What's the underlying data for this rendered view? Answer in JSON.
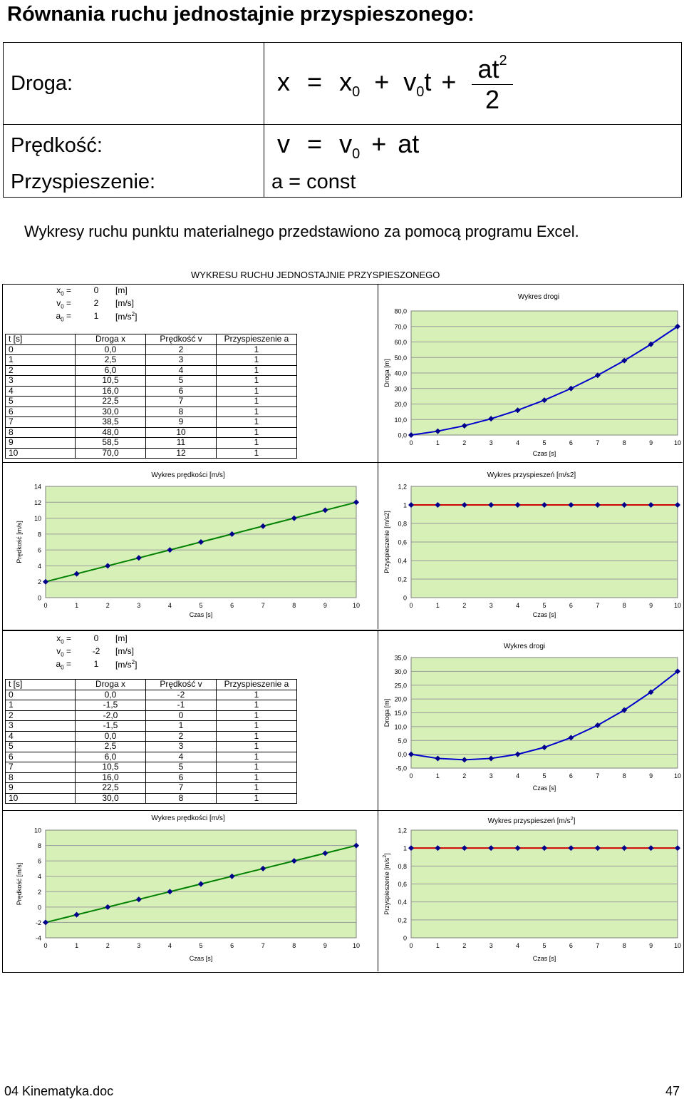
{
  "title": "Równania ruchu jednostajnie przyspieszonego:",
  "equations": {
    "droga_label": "Droga:",
    "predkosc_label": "Prędkość:",
    "przysp_label": "Przyspieszenie:",
    "przysp_formula": "a = const",
    "droga_formula": {
      "x": "x",
      "eq": "=",
      "x0": "x",
      "sub0": "0",
      "plus": "+",
      "v0": "v",
      "t": "t",
      "num": "at",
      "exp": "2",
      "den": "2"
    },
    "predkosc_formula": {
      "v": "v",
      "eq": "=",
      "v0": "v",
      "sub0": "0",
      "plus": "+",
      "at": "at"
    }
  },
  "intro": "Wykresy ruchu punktu materialnego przedstawiono za pomocą programu Excel.",
  "section_title": "WYKRESU RUCHU JEDNOSTAJNIE PRZYSPIESZONEGO",
  "tables": [
    {
      "params": [
        {
          "key": "x",
          "sub": "0",
          "eq": " =",
          "value": "0",
          "unit": "[m]"
        },
        {
          "key": "v",
          "sub": "0",
          "eq": " =",
          "value": "2",
          "unit": "[m/s]"
        },
        {
          "key": "a",
          "sub": "0",
          "eq": " =",
          "value": "1",
          "unit": "[m/s",
          "unit_sup": "2",
          "unit_end": "]"
        }
      ],
      "headers": [
        "t [s]",
        "Droga x",
        "Prędkość v",
        "Przyspieszenie a"
      ],
      "rows": [
        [
          "0",
          "0,0",
          "2",
          "1"
        ],
        [
          "1",
          "2,5",
          "3",
          "1"
        ],
        [
          "2",
          "6,0",
          "4",
          "1"
        ],
        [
          "3",
          "10,5",
          "5",
          "1"
        ],
        [
          "4",
          "16,0",
          "6",
          "1"
        ],
        [
          "5",
          "22,5",
          "7",
          "1"
        ],
        [
          "6",
          "30,0",
          "8",
          "1"
        ],
        [
          "7",
          "38,5",
          "9",
          "1"
        ],
        [
          "8",
          "48,0",
          "10",
          "1"
        ],
        [
          "9",
          "58,5",
          "11",
          "1"
        ],
        [
          "10",
          "70,0",
          "12",
          "1"
        ]
      ]
    },
    {
      "params": [
        {
          "key": "x",
          "sub": "0",
          "eq": " =",
          "value": "0",
          "unit": "[m]"
        },
        {
          "key": "v",
          "sub": "0",
          "eq": " =",
          "value": "-2",
          "unit": "[m/s]"
        },
        {
          "key": "a",
          "sub": "0",
          "eq": " =",
          "value": "1",
          "unit": "[m/s",
          "unit_sup": "2",
          "unit_end": "]"
        }
      ],
      "headers": [
        "t [s]",
        "Droga x",
        "Prędkość v",
        "Przyspieszenie a"
      ],
      "rows": [
        [
          "0",
          "0,0",
          "-2",
          "1"
        ],
        [
          "1",
          "-1,5",
          "-1",
          "1"
        ],
        [
          "2",
          "-2,0",
          "0",
          "1"
        ],
        [
          "3",
          "-1,5",
          "1",
          "1"
        ],
        [
          "4",
          "0,0",
          "2",
          "1"
        ],
        [
          "5",
          "2,5",
          "3",
          "1"
        ],
        [
          "6",
          "6,0",
          "4",
          "1"
        ],
        [
          "7",
          "10,5",
          "5",
          "1"
        ],
        [
          "8",
          "16,0",
          "6",
          "1"
        ],
        [
          "9",
          "22,5",
          "7",
          "1"
        ],
        [
          "10",
          "30,0",
          "8",
          "1"
        ]
      ]
    }
  ],
  "chart_data": [
    {
      "type": "line",
      "title": "Wykres drogi",
      "xlabel": "Czas [s]",
      "ylabel": "Droga [m]",
      "x": [
        0,
        1,
        2,
        3,
        4,
        5,
        6,
        7,
        8,
        9,
        10
      ],
      "y": [
        0,
        2.5,
        6,
        10.5,
        16,
        22.5,
        30,
        38.5,
        48,
        58.5,
        70
      ],
      "ylim": [
        0,
        80
      ],
      "yticks": [
        "0,0",
        "10,0",
        "20,0",
        "30,0",
        "40,0",
        "50,0",
        "60,0",
        "70,0",
        "80,0"
      ],
      "xticks": [
        "0",
        "1",
        "2",
        "3",
        "4",
        "5",
        "6",
        "7",
        "8",
        "9",
        "10"
      ],
      "line_color": "#0000cc",
      "marker_color": "#00008b",
      "grid": true
    },
    {
      "type": "line",
      "title": "Wykres prędkości [m/s]",
      "xlabel": "Czas [s]",
      "ylabel": "Prędkość [m/s]",
      "x": [
        0,
        1,
        2,
        3,
        4,
        5,
        6,
        7,
        8,
        9,
        10
      ],
      "y": [
        2,
        3,
        4,
        5,
        6,
        7,
        8,
        9,
        10,
        11,
        12
      ],
      "ylim": [
        0,
        14
      ],
      "yticks": [
        "0",
        "2",
        "4",
        "6",
        "8",
        "10",
        "12",
        "14"
      ],
      "xticks": [
        "0",
        "1",
        "2",
        "3",
        "4",
        "5",
        "6",
        "7",
        "8",
        "9",
        "10"
      ],
      "line_color": "#008000",
      "marker_color": "#00008b",
      "grid": true
    },
    {
      "type": "line",
      "title": "Wykres przyspieszeń [m/s2]",
      "xlabel": "Czas [s]",
      "ylabel": "Przyspieszenie [m/s2]",
      "x": [
        0,
        1,
        2,
        3,
        4,
        5,
        6,
        7,
        8,
        9,
        10
      ],
      "y": [
        1,
        1,
        1,
        1,
        1,
        1,
        1,
        1,
        1,
        1,
        1
      ],
      "ylim": [
        0,
        1.2
      ],
      "yticks": [
        "0",
        "0,2",
        "0,4",
        "0,6",
        "0,8",
        "1",
        "1,2"
      ],
      "xticks": [
        "0",
        "1",
        "2",
        "3",
        "4",
        "5",
        "6",
        "7",
        "8",
        "9",
        "10"
      ],
      "line_color": "#cc0000",
      "marker_color": "#00008b",
      "grid": true
    },
    {
      "type": "line",
      "title": "Wykres drogi",
      "xlabel": "Czas [s]",
      "ylabel": "Droga [m]",
      "x": [
        0,
        1,
        2,
        3,
        4,
        5,
        6,
        7,
        8,
        9,
        10
      ],
      "y": [
        0,
        -1.5,
        -2,
        -1.5,
        0,
        2.5,
        6,
        10.5,
        16,
        22.5,
        30
      ],
      "ylim": [
        -5,
        35
      ],
      "yticks": [
        "-5,0",
        "0,0",
        "5,0",
        "10,0",
        "15,0",
        "20,0",
        "25,0",
        "30,0",
        "35,0"
      ],
      "xticks": [
        "0",
        "1",
        "2",
        "3",
        "4",
        "5",
        "6",
        "7",
        "8",
        "9",
        "10"
      ],
      "line_color": "#0000cc",
      "marker_color": "#00008b",
      "grid": true
    },
    {
      "type": "line",
      "title": "Wykres prędkości [m/s]",
      "xlabel": "Czas [s]",
      "ylabel": "Prędkość [m/s]",
      "x": [
        0,
        1,
        2,
        3,
        4,
        5,
        6,
        7,
        8,
        9,
        10
      ],
      "y": [
        -2,
        -1,
        0,
        1,
        2,
        3,
        4,
        5,
        6,
        7,
        8
      ],
      "ylim": [
        -4,
        10
      ],
      "yticks": [
        "-4",
        "-2",
        "0",
        "2",
        "4",
        "6",
        "8",
        "10"
      ],
      "xticks": [
        "0",
        "1",
        "2",
        "3",
        "4",
        "5",
        "6",
        "7",
        "8",
        "9",
        "10"
      ],
      "line_color": "#008000",
      "marker_color": "#00008b",
      "grid": true
    },
    {
      "type": "line",
      "title": "Wykres przyspieszeń [m/s",
      "title_sup": "2",
      "title_end": "]",
      "xlabel": "Czas [s]",
      "ylabel": "Przyspieszenie [m/s",
      "ylabel_sup": "2",
      "ylabel_end": "]",
      "x": [
        0,
        1,
        2,
        3,
        4,
        5,
        6,
        7,
        8,
        9,
        10
      ],
      "y": [
        1,
        1,
        1,
        1,
        1,
        1,
        1,
        1,
        1,
        1,
        1
      ],
      "ylim": [
        0,
        1.2
      ],
      "yticks": [
        "0",
        "0,2",
        "0,4",
        "0,6",
        "0,8",
        "1",
        "1,2"
      ],
      "xticks": [
        "0",
        "1",
        "2",
        "3",
        "4",
        "5",
        "6",
        "7",
        "8",
        "9",
        "10"
      ],
      "line_color": "#cc0000",
      "marker_color": "#00008b",
      "grid": true
    }
  ],
  "footer": {
    "left": "04 Kinematyka.doc",
    "right": "47"
  }
}
